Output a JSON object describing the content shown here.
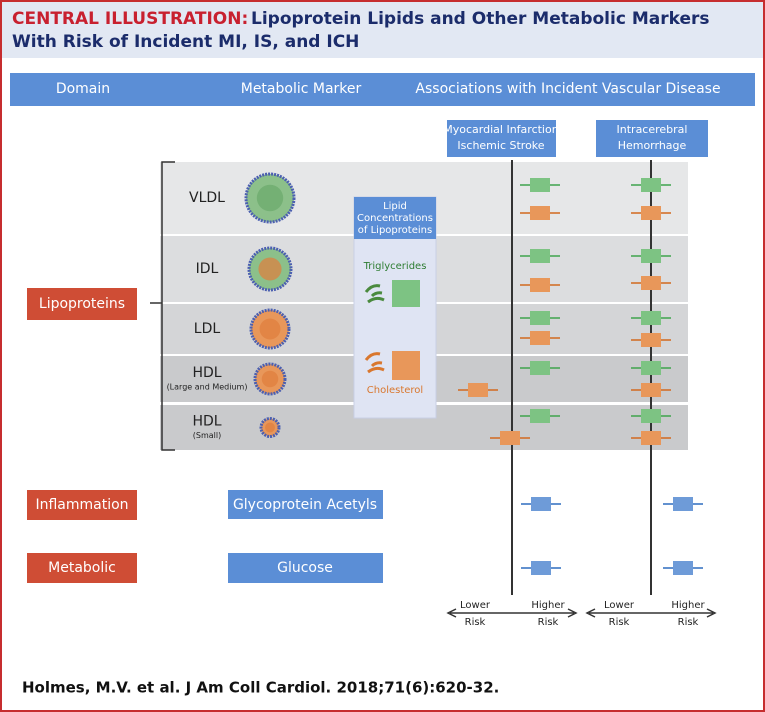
{
  "header": {
    "title_label": "CENTRAL ILLUSTRATION:",
    "title_lines": [
      "Lipoprotein Lipids and Other Metabolic Markers",
      "With Risk of Incident MI, IS, and ICH"
    ]
  },
  "columns": [
    "Domain",
    "Metabolic Marker",
    "Associations with Incident Vascular Disease"
  ],
  "outcomes": [
    [
      "Myocardial Infarction",
      "Ischemic Stroke"
    ],
    [
      "Intracerebral",
      "Hemorrhage"
    ]
  ],
  "lipoproteins": {
    "domain": "Lipoproteins",
    "rows": [
      {
        "label": "VLDL"
      },
      {
        "label": "IDL"
      },
      {
        "label": "LDL"
      },
      {
        "label": "HDL",
        "sublabel": "(Large and Medium)"
      },
      {
        "label": "HDL",
        "sublabel": "(Small)"
      }
    ]
  },
  "lipid_box": {
    "title": [
      "Lipid",
      "Concentrations",
      "of Lipoproteins"
    ],
    "triglycerides": "Triglycerides",
    "cholesterol": "Cholesterol"
  },
  "other": [
    {
      "domain": "Inflammation",
      "marker": "Glycoprotein Acetyls"
    },
    {
      "domain": "Metabolic",
      "marker": "Glucose"
    }
  ],
  "axis": {
    "lower": [
      "Lower",
      "Risk"
    ],
    "higher": [
      "Higher",
      "Risk"
    ]
  },
  "citation": "Holmes, M.V. et al. J Am Coll Cardiol. 2018;71(6):620-32."
}
